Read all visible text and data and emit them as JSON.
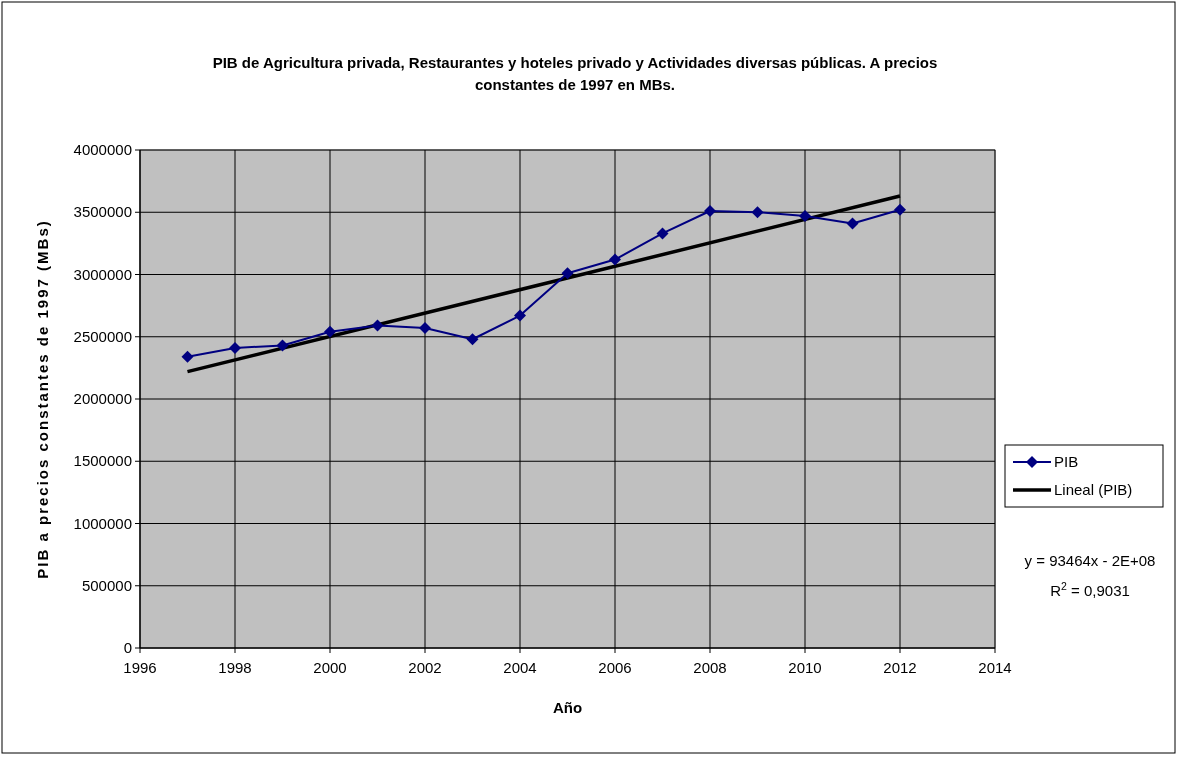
{
  "chart_data": {
    "type": "line",
    "title": "PIB de Agricultura privada, Restaurantes y hoteles privado y Actividades diversas públicas. A precios constantes de 1997 en MBs.",
    "xlabel": "Año",
    "ylabel": "PIB a precios constantes de 1997 (MBs)",
    "xlim": [
      1996,
      2014
    ],
    "xticks": [
      1996,
      1998,
      2000,
      2002,
      2004,
      2006,
      2008,
      2010,
      2012,
      2014
    ],
    "ylim": [
      0,
      4000000
    ],
    "yticks": [
      0,
      500000,
      1000000,
      1500000,
      2000000,
      2500000,
      3000000,
      3500000,
      4000000
    ],
    "grid": true,
    "legend": "right",
    "series": [
      {
        "name": "PIB",
        "color": "#000080",
        "marker": "diamond",
        "line_style": "solid",
        "x": [
          1997,
          1998,
          1999,
          2000,
          2001,
          2002,
          2003,
          2004,
          2005,
          2006,
          2007,
          2008,
          2009,
          2010,
          2011,
          2012
        ],
        "values": [
          2340000,
          2410000,
          2430000,
          2540000,
          2590000,
          2570000,
          2480000,
          2670000,
          3010000,
          3120000,
          3330000,
          3510000,
          3500000,
          3470000,
          3410000,
          3520000
        ]
      },
      {
        "name": "Lineal (PIB)",
        "color": "#000000",
        "marker": "none",
        "line_style": "solid",
        "x": [
          1997,
          2012
        ],
        "values": [
          2220000,
          3630000
        ]
      }
    ],
    "annotations": [
      "y = 93464x - 2E+08",
      "R$^{2}$ = 0,9031"
    ]
  }
}
